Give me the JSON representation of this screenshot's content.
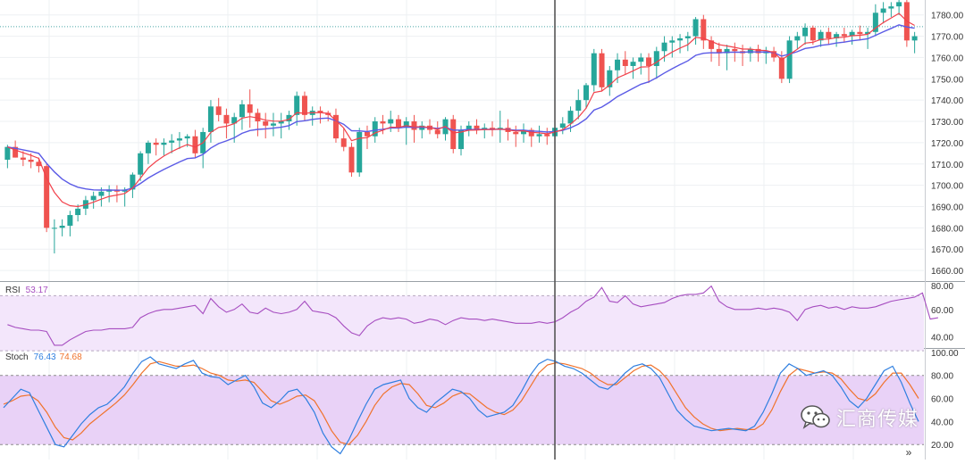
{
  "colors": {
    "up": "#26a69a",
    "down": "#ef5350",
    "ema_fast": "#f2414b",
    "ema_slow": "#5b5be6",
    "rsi": "#a64dc0",
    "stoch_k": "#2f7fe0",
    "stoch_d": "#f0732c",
    "band_fill_rsi": "#f3e6fb",
    "band_fill_stoch": "#e9d2f7",
    "grid": "#eef0f3",
    "crosshair": "#555555",
    "hline": "#4aa8a8"
  },
  "chart_data": [
    {
      "type": "candlestick",
      "title": "",
      "ylim": [
        1655,
        1787
      ],
      "yticks": [
        "1780.00",
        "1770.00",
        "1760.00",
        "1750.00",
        "1740.00",
        "1730.00",
        "1720.00",
        "1710.00",
        "1700.00",
        "1690.00",
        "1680.00",
        "1670.00",
        "1660.00"
      ],
      "ytick_values": [
        1780,
        1770,
        1760,
        1750,
        1740,
        1730,
        1720,
        1710,
        1700,
        1690,
        1680,
        1670,
        1660
      ],
      "horizontal_line": 1774.5,
      "crosshair_index": 70,
      "candles": [
        [
          1712,
          1719,
          1708,
          1718
        ],
        [
          1718,
          1721,
          1713,
          1713
        ],
        [
          1713,
          1716,
          1709,
          1712
        ],
        [
          1712,
          1715,
          1708,
          1711
        ],
        [
          1711,
          1713,
          1706,
          1709
        ],
        [
          1709,
          1710,
          1678,
          1680
        ],
        [
          1680,
          1684,
          1668,
          1680
        ],
        [
          1680,
          1684,
          1676,
          1681
        ],
        [
          1681,
          1688,
          1676,
          1686
        ],
        [
          1686,
          1691,
          1683,
          1689
        ],
        [
          1689,
          1695,
          1686,
          1693
        ],
        [
          1693,
          1697,
          1689,
          1695
        ],
        [
          1695,
          1699,
          1690,
          1697
        ],
        [
          1697,
          1700,
          1692,
          1698
        ],
        [
          1698,
          1700,
          1692,
          1697
        ],
        [
          1697,
          1699,
          1690,
          1698
        ],
        [
          1698,
          1706,
          1694,
          1705
        ],
        [
          1705,
          1716,
          1702,
          1715
        ],
        [
          1715,
          1721,
          1710,
          1720
        ],
        [
          1720,
          1722,
          1714,
          1719
        ],
        [
          1719,
          1722,
          1714,
          1720
        ],
        [
          1720,
          1724,
          1715,
          1721
        ],
        [
          1721,
          1725,
          1717,
          1722
        ],
        [
          1722,
          1724,
          1718,
          1723
        ],
        [
          1723,
          1726,
          1713,
          1715
        ],
        [
          1715,
          1727,
          1708,
          1725
        ],
        [
          1725,
          1740,
          1720,
          1737
        ],
        [
          1737,
          1741,
          1730,
          1733
        ],
        [
          1733,
          1736,
          1722,
          1729
        ],
        [
          1729,
          1734,
          1720,
          1732
        ],
        [
          1732,
          1740,
          1726,
          1738
        ],
        [
          1738,
          1745,
          1727,
          1734
        ],
        [
          1734,
          1736,
          1723,
          1730
        ],
        [
          1730,
          1734,
          1722,
          1728
        ],
        [
          1728,
          1734,
          1723,
          1729
        ],
        [
          1729,
          1734,
          1722,
          1730
        ],
        [
          1730,
          1735,
          1726,
          1733
        ],
        [
          1733,
          1744,
          1728,
          1742
        ],
        [
          1742,
          1744,
          1730,
          1733
        ],
        [
          1733,
          1737,
          1728,
          1735
        ],
        [
          1735,
          1737,
          1729,
          1734
        ],
        [
          1734,
          1735,
          1730,
          1733
        ],
        [
          1733,
          1736,
          1720,
          1722
        ],
        [
          1722,
          1727,
          1716,
          1718
        ],
        [
          1718,
          1720,
          1704,
          1706
        ],
        [
          1706,
          1727,
          1704,
          1725
        ],
        [
          1725,
          1728,
          1717,
          1723
        ],
        [
          1723,
          1732,
          1720,
          1730
        ],
        [
          1730,
          1733,
          1724,
          1729
        ],
        [
          1729,
          1735,
          1725,
          1731
        ],
        [
          1731,
          1733,
          1725,
          1727
        ],
        [
          1727,
          1732,
          1719,
          1730
        ],
        [
          1730,
          1733,
          1720,
          1726
        ],
        [
          1726,
          1730,
          1722,
          1728
        ],
        [
          1728,
          1731,
          1724,
          1726
        ],
        [
          1726,
          1730,
          1722,
          1724
        ],
        [
          1724,
          1732,
          1721,
          1731
        ],
        [
          1731,
          1733,
          1715,
          1717
        ],
        [
          1717,
          1728,
          1714,
          1726
        ],
        [
          1726,
          1730,
          1723,
          1728
        ],
        [
          1728,
          1731,
          1724,
          1726
        ],
        [
          1726,
          1729,
          1722,
          1727
        ],
        [
          1727,
          1730,
          1723,
          1726
        ],
        [
          1726,
          1735,
          1720,
          1727
        ],
        [
          1727,
          1731,
          1721,
          1725
        ],
        [
          1725,
          1728,
          1718,
          1724
        ],
        [
          1724,
          1729,
          1720,
          1726
        ],
        [
          1726,
          1727,
          1718,
          1723
        ],
        [
          1723,
          1728,
          1720,
          1724
        ],
        [
          1724,
          1727,
          1719,
          1723
        ],
        [
          1723,
          1729,
          1720,
          1727
        ],
        [
          1727,
          1732,
          1724,
          1729
        ],
        [
          1729,
          1737,
          1725,
          1735
        ],
        [
          1735,
          1745,
          1731,
          1740
        ],
        [
          1740,
          1748,
          1736,
          1747
        ],
        [
          1747,
          1764,
          1744,
          1762
        ],
        [
          1762,
          1764,
          1744,
          1746
        ],
        [
          1746,
          1756,
          1742,
          1754
        ],
        [
          1754,
          1762,
          1748,
          1759
        ],
        [
          1759,
          1763,
          1752,
          1756
        ],
        [
          1756,
          1760,
          1750,
          1758
        ],
        [
          1758,
          1762,
          1752,
          1760
        ],
        [
          1760,
          1762,
          1748,
          1756
        ],
        [
          1756,
          1765,
          1750,
          1763
        ],
        [
          1763,
          1770,
          1758,
          1767
        ],
        [
          1767,
          1770,
          1760,
          1768
        ],
        [
          1768,
          1771,
          1762,
          1769
        ],
        [
          1769,
          1772,
          1763,
          1770
        ],
        [
          1770,
          1779,
          1766,
          1778
        ],
        [
          1778,
          1780,
          1764,
          1768
        ],
        [
          1768,
          1770,
          1758,
          1764
        ],
        [
          1764,
          1767,
          1756,
          1762
        ],
        [
          1762,
          1766,
          1754,
          1764
        ],
        [
          1764,
          1767,
          1758,
          1763
        ],
        [
          1763,
          1766,
          1756,
          1762
        ],
        [
          1762,
          1765,
          1758,
          1764
        ],
        [
          1764,
          1766,
          1758,
          1762
        ],
        [
          1762,
          1765,
          1757,
          1763
        ],
        [
          1763,
          1765,
          1758,
          1760
        ],
        [
          1760,
          1763,
          1748,
          1750
        ],
        [
          1750,
          1770,
          1748,
          1768
        ],
        [
          1768,
          1772,
          1764,
          1770
        ],
        [
          1770,
          1776,
          1766,
          1774
        ],
        [
          1774,
          1775,
          1766,
          1768
        ],
        [
          1768,
          1773,
          1765,
          1772
        ],
        [
          1772,
          1774,
          1766,
          1769
        ],
        [
          1769,
          1772,
          1765,
          1771
        ],
        [
          1771,
          1774,
          1767,
          1770
        ],
        [
          1770,
          1773,
          1766,
          1772
        ],
        [
          1772,
          1775,
          1768,
          1771
        ],
        [
          1771,
          1774,
          1764,
          1772
        ],
        [
          1772,
          1785,
          1770,
          1781
        ],
        [
          1781,
          1786,
          1776,
          1783
        ],
        [
          1783,
          1786,
          1779,
          1784
        ],
        [
          1784,
          1788,
          1780,
          1786
        ],
        [
          1786,
          1787,
          1765,
          1768
        ],
        [
          1768,
          1772,
          1762,
          1770
        ]
      ]
    },
    {
      "type": "line",
      "name": "RSI",
      "label": "RSI",
      "value_label": "53.17",
      "ylim": [
        32,
        80
      ],
      "yticks": [
        "60.00",
        "40.00"
      ],
      "ytick_values": [
        60,
        40
      ],
      "band": [
        30,
        70
      ],
      "values": [
        49,
        47,
        46,
        45,
        45,
        44,
        34,
        34,
        38,
        41,
        44,
        45,
        45,
        46,
        46,
        46,
        47,
        54,
        57,
        59,
        60,
        60,
        61,
        62,
        63,
        57,
        68,
        62,
        58,
        60,
        64,
        58,
        57,
        61,
        58,
        57,
        58,
        60,
        66,
        59,
        58,
        57,
        54,
        48,
        43,
        41,
        48,
        52,
        54,
        53,
        54,
        53,
        50,
        51,
        53,
        52,
        49,
        52,
        54,
        53,
        53,
        52,
        53,
        52,
        51,
        50,
        50,
        50,
        51,
        50,
        51,
        54,
        58,
        61,
        66,
        69,
        76,
        66,
        65,
        70,
        64,
        62,
        63,
        64,
        65,
        68,
        70,
        71,
        71,
        72,
        77,
        66,
        62,
        60,
        60,
        60,
        61,
        60,
        61,
        60,
        58,
        52,
        60,
        62,
        63,
        61,
        62,
        60,
        62,
        61,
        61,
        62,
        64,
        66,
        67,
        68,
        69,
        72,
        53,
        54
      ]
    },
    {
      "type": "line",
      "name": "Stoch",
      "label": "Stoch",
      "value_label_k": "76.43",
      "value_label_d": "74.68",
      "ylim": [
        7,
        103
      ],
      "yticks": [
        "100.00",
        "80.00",
        "60.00",
        "40.00",
        "20.00"
      ],
      "ytick_values": [
        100,
        80,
        60,
        40,
        20
      ],
      "band": [
        20,
        80
      ],
      "series": [
        {
          "name": "%K",
          "values": [
            52,
            60,
            68,
            65,
            50,
            35,
            20,
            18,
            28,
            38,
            46,
            52,
            55,
            62,
            70,
            82,
            92,
            96,
            90,
            88,
            86,
            90,
            93,
            82,
            79,
            78,
            72,
            76,
            80,
            70,
            56,
            52,
            58,
            66,
            68,
            60,
            48,
            30,
            18,
            12,
            24,
            40,
            55,
            68,
            72,
            74,
            76,
            60,
            52,
            48,
            56,
            62,
            68,
            66,
            60,
            50,
            44,
            46,
            48,
            54,
            66,
            80,
            90,
            94,
            92,
            88,
            86,
            82,
            76,
            70,
            68,
            74,
            82,
            88,
            90,
            86,
            78,
            64,
            50,
            42,
            36,
            34,
            32,
            33,
            34,
            33,
            32,
            36,
            48,
            64,
            82,
            90,
            86,
            80,
            82,
            84,
            80,
            70,
            58,
            52,
            60,
            72,
            84,
            88,
            74,
            56,
            40
          ]
        },
        {
          "name": "%D",
          "values": [
            55,
            58,
            62,
            63,
            58,
            48,
            35,
            26,
            24,
            30,
            38,
            44,
            50,
            56,
            63,
            72,
            82,
            90,
            92,
            90,
            88,
            88,
            89,
            86,
            82,
            80,
            76,
            75,
            76,
            74,
            66,
            58,
            55,
            58,
            62,
            63,
            58,
            46,
            32,
            22,
            20,
            28,
            40,
            54,
            64,
            70,
            73,
            72,
            64,
            54,
            52,
            56,
            62,
            65,
            64,
            58,
            52,
            48,
            46,
            50,
            58,
            70,
            82,
            89,
            91,
            90,
            88,
            86,
            82,
            76,
            72,
            72,
            78,
            84,
            88,
            89,
            84,
            76,
            64,
            52,
            44,
            38,
            34,
            32,
            33,
            34,
            33,
            33,
            38,
            50,
            66,
            80,
            86,
            84,
            82,
            83,
            82,
            77,
            68,
            60,
            58,
            64,
            74,
            82,
            82,
            72,
            60
          ]
        }
      ]
    }
  ],
  "watermark": {
    "text": "汇商传媒",
    "icon": "wechat-icon"
  },
  "scroll_button": {
    "label": "»",
    "icon": "double-chevron-right-icon"
  }
}
